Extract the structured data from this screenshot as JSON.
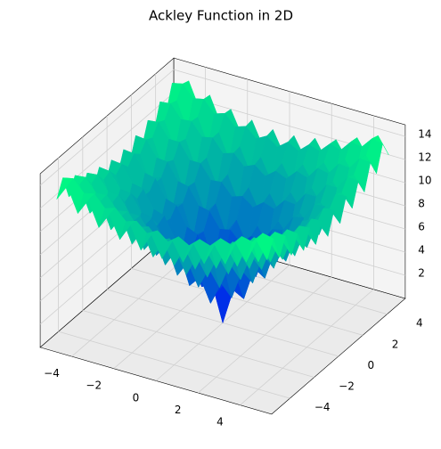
{
  "chart_data": {
    "type": "surface",
    "title": "Ackley Function in 2D",
    "x": [
      -5,
      -4.5,
      -4,
      -3.5,
      -3,
      -2.5,
      -2,
      -1.5,
      -1,
      -0.5,
      0,
      0.5,
      1,
      1.5,
      2,
      2.5,
      3,
      3.5,
      4,
      4.5,
      5
    ],
    "y": [
      -5,
      -4.5,
      -4,
      -3.5,
      -3,
      -2.5,
      -2,
      -1.5,
      -1,
      -0.5,
      0,
      0.5,
      1,
      1.5,
      2,
      2.5,
      3,
      3.5,
      4,
      4.5,
      5
    ],
    "z": [
      [
        12.6,
        14.0,
        11.9,
        13.3,
        11.2,
        12.6,
        10.7,
        12.2,
        10.3,
        11.9,
        10.1,
        11.9,
        10.3,
        12.2,
        10.7,
        12.6,
        11.2,
        13.3,
        11.9,
        14.0,
        12.6
      ],
      [
        14.0,
        14.2,
        13.2,
        13.4,
        12.4,
        12.7,
        11.8,
        12.1,
        11.3,
        11.8,
        11.1,
        11.8,
        11.3,
        12.1,
        11.8,
        12.7,
        12.4,
        13.4,
        13.2,
        14.2,
        14.0
      ],
      [
        11.9,
        13.2,
        11.0,
        12.3,
        10.1,
        11.5,
        9.4,
        10.8,
        8.8,
        10.4,
        8.6,
        10.4,
        8.8,
        10.8,
        9.4,
        11.5,
        10.1,
        12.3,
        11.0,
        13.2,
        11.9
      ],
      [
        13.3,
        13.4,
        12.3,
        12.4,
        11.3,
        11.5,
        10.4,
        10.7,
        9.8,
        10.2,
        9.5,
        10.2,
        9.8,
        10.7,
        10.4,
        11.5,
        11.3,
        12.4,
        12.3,
        13.4,
        13.3
      ],
      [
        11.2,
        12.4,
        10.1,
        11.3,
        9.0,
        10.2,
        8.0,
        9.3,
        7.2,
        8.7,
        6.9,
        8.7,
        7.2,
        9.3,
        8.0,
        10.2,
        9.0,
        11.3,
        10.1,
        12.4,
        11.2
      ],
      [
        12.6,
        12.7,
        11.5,
        11.5,
        10.2,
        10.2,
        9.0,
        9.1,
        8.1,
        8.4,
        7.7,
        8.4,
        8.1,
        9.1,
        9.0,
        10.2,
        10.2,
        11.5,
        11.5,
        12.7,
        12.6
      ],
      [
        10.7,
        11.8,
        9.4,
        10.4,
        8.0,
        9.0,
        6.6,
        7.7,
        5.4,
        6.8,
        4.9,
        6.8,
        5.4,
        7.7,
        6.6,
        9.0,
        8.0,
        10.4,
        9.4,
        11.8,
        10.7
      ],
      [
        12.2,
        12.1,
        10.8,
        10.7,
        9.3,
        9.1,
        7.7,
        7.5,
        6.2,
        6.4,
        5.5,
        6.4,
        6.2,
        7.5,
        7.7,
        9.1,
        9.3,
        10.7,
        10.8,
        12.1,
        12.2
      ],
      [
        10.3,
        11.3,
        8.8,
        9.8,
        7.2,
        8.1,
        5.4,
        6.2,
        3.6,
        4.6,
        2.6,
        4.6,
        3.6,
        6.2,
        5.4,
        8.1,
        7.2,
        9.8,
        8.8,
        11.3,
        10.3
      ],
      [
        11.9,
        11.8,
        10.4,
        10.2,
        8.7,
        8.4,
        6.8,
        6.4,
        4.6,
        4.3,
        3.1,
        4.3,
        4.6,
        6.4,
        6.8,
        8.4,
        8.7,
        10.2,
        10.4,
        11.8,
        11.9
      ],
      [
        10.1,
        11.1,
        8.6,
        9.5,
        6.9,
        7.7,
        4.9,
        5.5,
        2.6,
        3.1,
        0.0,
        3.1,
        2.6,
        5.5,
        4.9,
        7.7,
        6.9,
        9.5,
        8.6,
        11.1,
        10.1
      ],
      [
        11.9,
        11.8,
        10.4,
        10.2,
        8.7,
        8.4,
        6.8,
        6.4,
        4.6,
        4.3,
        3.1,
        4.3,
        4.6,
        6.4,
        6.8,
        8.4,
        8.7,
        10.2,
        10.4,
        11.8,
        11.9
      ],
      [
        10.3,
        11.3,
        8.8,
        9.8,
        7.2,
        8.1,
        5.4,
        6.2,
        3.6,
        4.6,
        2.6,
        4.6,
        3.6,
        6.2,
        5.4,
        8.1,
        7.2,
        9.8,
        8.8,
        11.3,
        10.3
      ],
      [
        12.2,
        12.1,
        10.8,
        10.7,
        9.3,
        9.1,
        7.7,
        7.5,
        6.2,
        6.4,
        5.5,
        6.4,
        6.2,
        7.5,
        7.7,
        9.1,
        9.3,
        10.7,
        10.8,
        12.1,
        12.2
      ],
      [
        10.7,
        11.8,
        9.4,
        10.4,
        8.0,
        9.0,
        6.6,
        7.7,
        5.4,
        6.8,
        4.9,
        6.8,
        5.4,
        7.7,
        6.6,
        9.0,
        8.0,
        10.4,
        9.4,
        11.8,
        10.7
      ],
      [
        12.6,
        12.7,
        11.5,
        11.5,
        10.2,
        10.2,
        9.0,
        9.1,
        8.1,
        8.4,
        7.7,
        8.4,
        8.1,
        9.1,
        9.0,
        10.2,
        10.2,
        11.5,
        11.5,
        12.7,
        12.6
      ],
      [
        11.2,
        12.4,
        10.1,
        11.3,
        9.0,
        10.2,
        8.0,
        9.3,
        7.2,
        8.7,
        6.9,
        8.7,
        7.2,
        9.3,
        8.0,
        10.2,
        9.0,
        11.3,
        10.1,
        12.4,
        11.2
      ],
      [
        13.3,
        13.4,
        12.3,
        12.4,
        11.3,
        11.5,
        10.4,
        10.7,
        9.8,
        10.2,
        9.5,
        10.2,
        9.8,
        10.7,
        10.4,
        11.5,
        11.3,
        12.4,
        12.3,
        13.4,
        13.3
      ],
      [
        11.9,
        13.2,
        11.0,
        12.3,
        10.1,
        11.5,
        9.4,
        10.8,
        8.8,
        10.4,
        8.6,
        10.4,
        8.8,
        10.8,
        9.4,
        11.5,
        10.1,
        12.3,
        11.0,
        13.2,
        11.9
      ],
      [
        14.0,
        14.2,
        13.2,
        13.4,
        12.4,
        12.7,
        11.8,
        12.1,
        11.3,
        11.8,
        11.1,
        11.8,
        11.3,
        12.1,
        11.8,
        12.7,
        12.4,
        13.4,
        13.2,
        14.2,
        14.0
      ],
      [
        12.6,
        14.0,
        11.9,
        13.3,
        11.2,
        12.6,
        10.7,
        12.2,
        10.3,
        11.9,
        10.1,
        11.9,
        10.3,
        12.2,
        10.7,
        12.6,
        11.2,
        13.3,
        11.9,
        14.0,
        12.6
      ]
    ],
    "colormap": [
      "#0000ff",
      "#00ff80"
    ],
    "xlim": [
      -5.5,
      5.5
    ],
    "ylim": [
      -5.5,
      5.5
    ],
    "zlim": [
      0,
      15
    ],
    "xticks": [
      {
        "value": -4,
        "label": "−4"
      },
      {
        "value": -2,
        "label": "−2"
      },
      0,
      2,
      4
    ],
    "yticks": [
      {
        "value": -4,
        "label": "−4"
      },
      {
        "value": -2,
        "label": "−2"
      },
      0,
      2,
      4
    ],
    "zticks": [
      2,
      4,
      6,
      8,
      10,
      12,
      14
    ],
    "grid": true
  }
}
